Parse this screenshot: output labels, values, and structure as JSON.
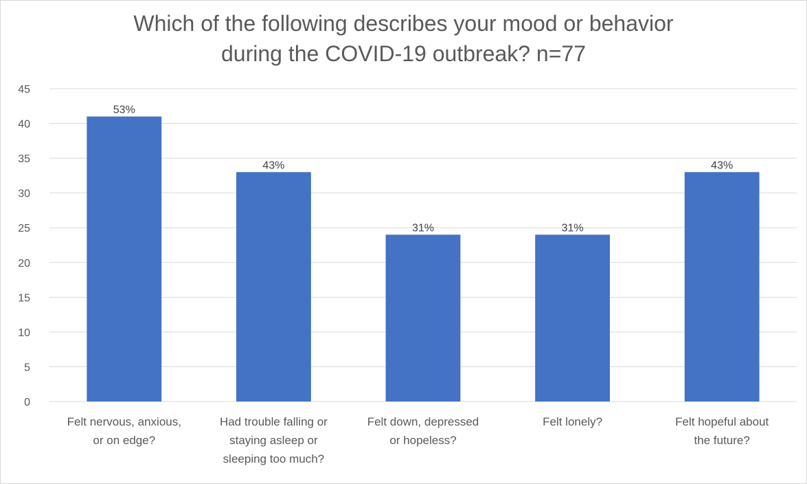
{
  "chart_data": {
    "type": "bar",
    "title_lines": [
      "Which of the following describes your mood or behavior",
      "during the COVID-19 outbreak? n=77"
    ],
    "categories": [
      [
        "Felt nervous, anxious,",
        "or on edge?"
      ],
      [
        "Had trouble falling or",
        "staying asleep or",
        "sleeping too much?"
      ],
      [
        "Felt down, depressed",
        "or hopeless?"
      ],
      [
        "Felt lonely?"
      ],
      [
        "Felt hopeful about",
        "the future?"
      ]
    ],
    "values": [
      41,
      33,
      24,
      24,
      33
    ],
    "data_labels": [
      "53%",
      "43%",
      "31%",
      "31%",
      "43%"
    ],
    "ylim": [
      0,
      45
    ],
    "yticks": [
      0,
      5,
      10,
      15,
      20,
      25,
      30,
      35,
      40,
      45
    ],
    "grid": true,
    "bar_color": "#4472C4",
    "grid_color": "#d9d9d9"
  }
}
